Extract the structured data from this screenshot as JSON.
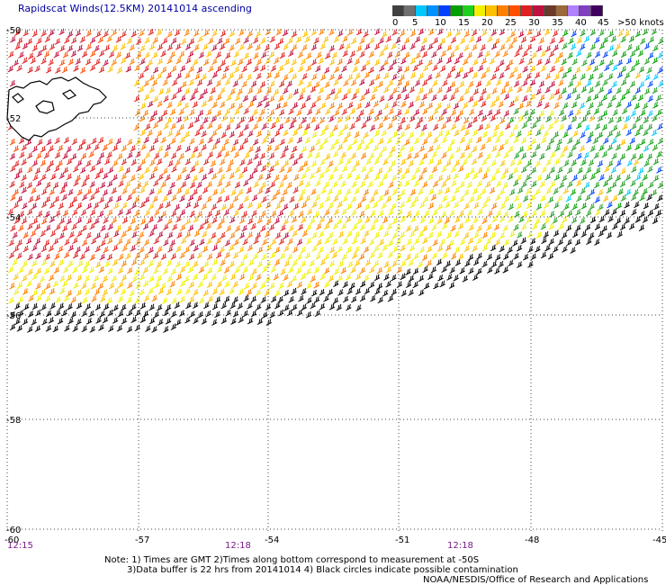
{
  "title": "Rapidscat Winds(12.5KM) 20141014 ascending",
  "legend": {
    "swatches": [
      "#404040",
      "#707070",
      "#00c8ff",
      "#0090ff",
      "#0040ff",
      "#00a000",
      "#20d020",
      "#f0f000",
      "#ffc000",
      "#ff8000",
      "#ff5000",
      "#e02020",
      "#c01040",
      "#6a3a2a",
      "#9a6a3a",
      "#b080ff",
      "#8040c0",
      "#400060"
    ],
    "labels": [
      "0",
      "5",
      "10",
      "15",
      "20",
      "25",
      "30",
      "35",
      "40",
      "45",
      ">50 knots"
    ]
  },
  "axes": {
    "lat_labels": [
      "-50",
      "-52",
      "-54",
      "-56",
      "-58",
      "-60"
    ],
    "lon_labels": [
      "-60",
      "-57",
      "-54",
      "-51",
      "-48",
      "-45"
    ],
    "time_labels": [
      "12:15",
      "12:18",
      "12:18"
    ]
  },
  "notes": {
    "line1": "Note: 1) Times are GMT 2)Times along bottom correspond to measurement at -50S",
    "line2": "3)Data buffer is 22 hrs from 20141014 4) Black circles indicate possible contamination"
  },
  "credit": "NOAA/NESDIS/Office of Research and Applications",
  "colors": {
    "grid": "#444444",
    "time_text": "#7a1a8a",
    "title_text": "#0000a0"
  }
}
